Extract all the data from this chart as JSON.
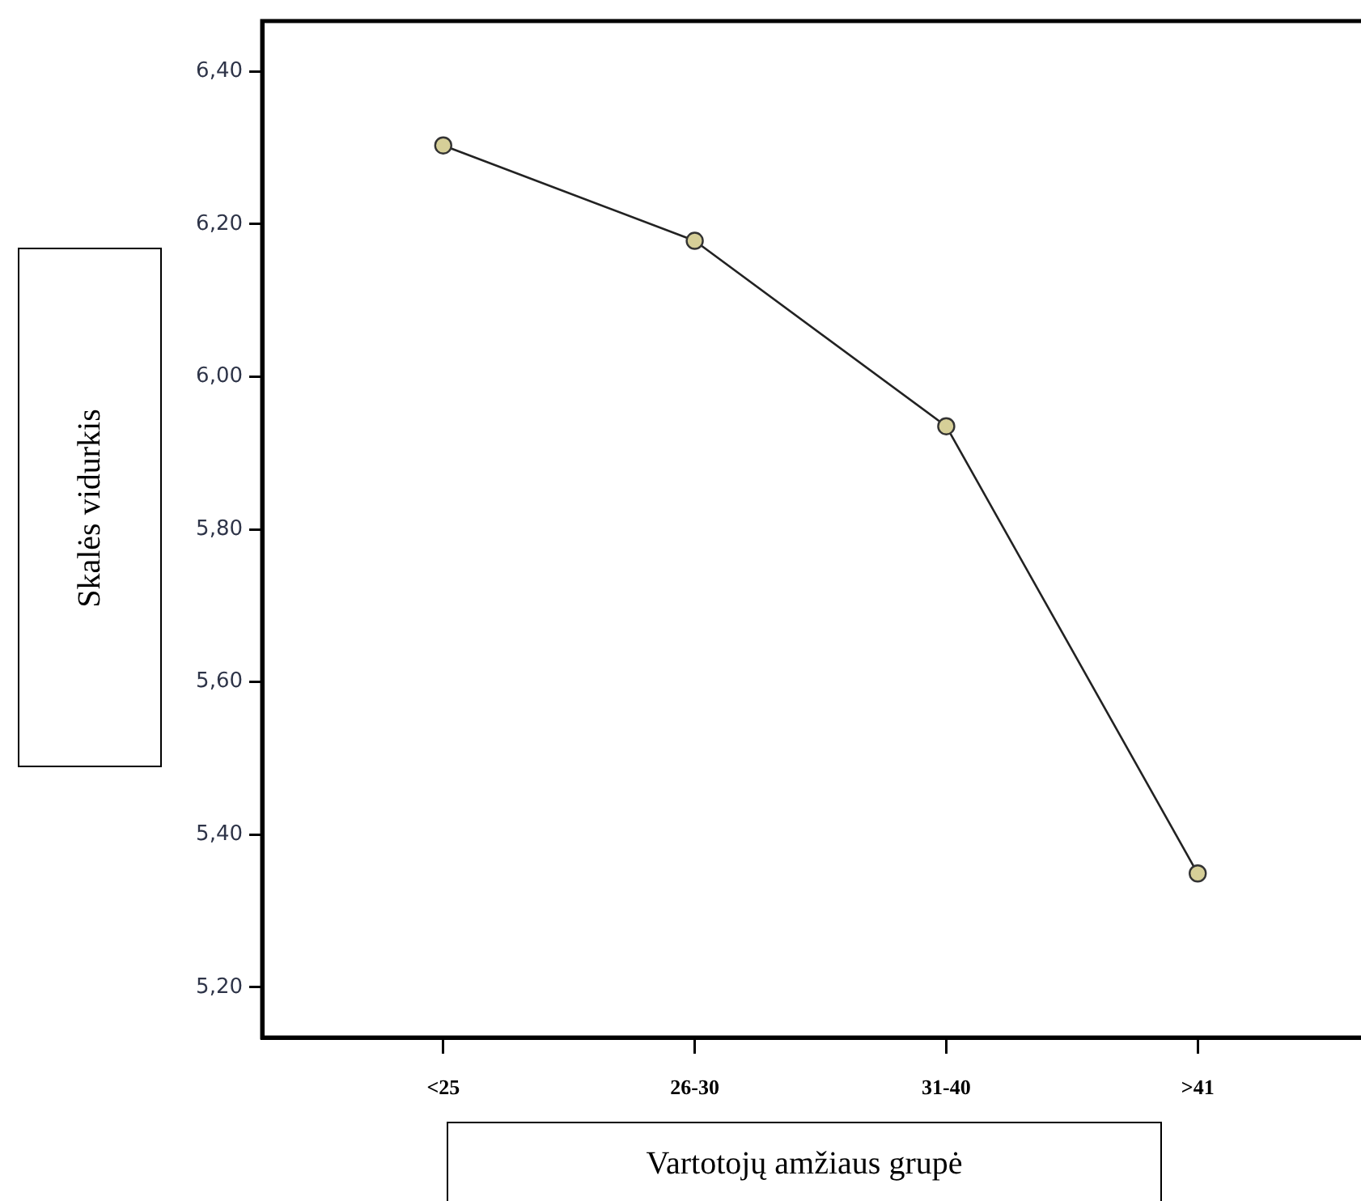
{
  "chart_data": {
    "type": "line",
    "xlabel": "Vartotojų amžiaus grupė",
    "ylabel": "Skalės vidurkis",
    "categories": [
      "<25",
      "26-30",
      "31-40",
      ">41"
    ],
    "series": [
      {
        "color": "#222222",
        "values": [
          6.303,
          6.178,
          5.935,
          5.349
        ]
      }
    ],
    "ylim": [
      5.134,
      6.466
    ],
    "yticks": [
      {
        "value": 5.2,
        "label": "5,20"
      },
      {
        "value": 5.4,
        "label": "5,40"
      },
      {
        "value": 5.6,
        "label": "5,60"
      },
      {
        "value": 5.8,
        "label": "5,80"
      },
      {
        "value": 6.0,
        "label": "6,00"
      },
      {
        "value": 6.2,
        "label": "6,20"
      },
      {
        "value": 6.4,
        "label": "6,40"
      }
    ],
    "grid": false,
    "legend": false,
    "marker": "circle",
    "line_style": "solid"
  }
}
